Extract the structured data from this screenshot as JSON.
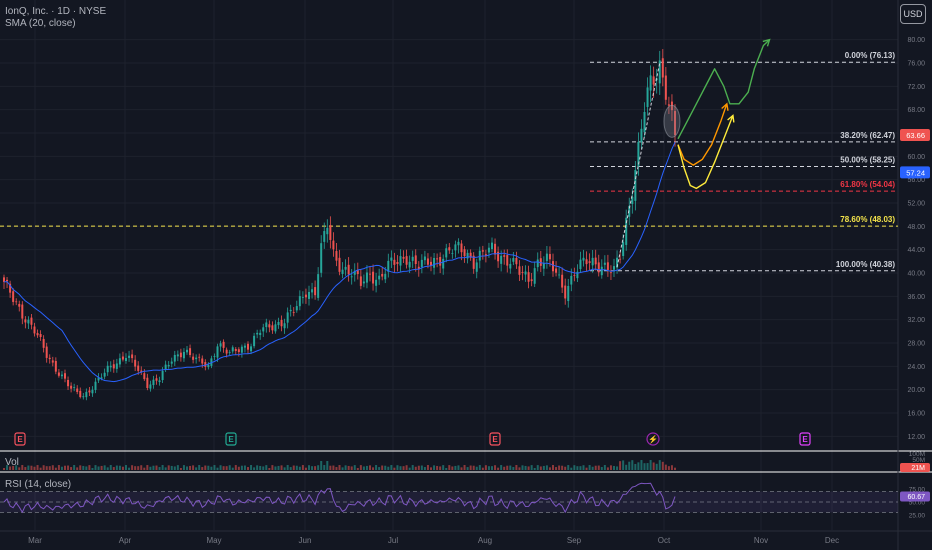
{
  "header": {
    "symbol": "IonQ, Inc. · 1D · NYSE",
    "sma_label": "SMA (20, close)",
    "volume_label": "Vol",
    "rsi_label": "RSI (14, close)",
    "currency": "USD"
  },
  "price_scale": {
    "ticks": [
      "80.00",
      "76.00",
      "72.00",
      "68.00",
      "64.00",
      "60.00",
      "56.00",
      "52.00",
      "48.00",
      "44.00",
      "40.00",
      "36.00",
      "32.00",
      "28.00",
      "24.00",
      "20.00",
      "16.00",
      "12.00"
    ],
    "current_price": "63.66",
    "sma_value": "57.24",
    "colors": {
      "price_badge": "#ef5350",
      "sma_badge": "#2962ff"
    }
  },
  "fib_levels": [
    {
      "label": "0.00% (76.13)",
      "price": 76.13,
      "color": "#d1d4dc"
    },
    {
      "label": "38.20% (62.47)",
      "price": 62.47,
      "color": "#d1d4dc"
    },
    {
      "label": "50.00% (58.25)",
      "price": 58.25,
      "color": "#d1d4dc"
    },
    {
      "label": "61.80% (54.04)",
      "price": 54.04,
      "color": "#f23645"
    },
    {
      "label": "78.60% (48.03)",
      "price": 48.03,
      "color": "#f5e54b"
    },
    {
      "label": "100.00% (40.38)",
      "price": 40.38,
      "color": "#d1d4dc"
    }
  ],
  "x_axis": {
    "months": [
      "Mar",
      "Apr",
      "May",
      "Jun",
      "Jul",
      "Aug",
      "Sep",
      "Oct",
      "Nov",
      "Dec"
    ]
  },
  "events": [
    {
      "type": "earnings",
      "label": "E",
      "color": "#f7525f"
    },
    {
      "type": "earnings",
      "label": "E",
      "color": "#22ab94"
    },
    {
      "type": "earnings",
      "label": "E",
      "color": "#f7525f"
    },
    {
      "type": "event",
      "label": "⚡",
      "color": "#9c27b0"
    },
    {
      "type": "earnings",
      "label": "E",
      "color": "#e040fb"
    }
  ],
  "volume": {
    "ticks": [
      "100M",
      "50M"
    ],
    "value": "21M",
    "badge_color": "#ef5350"
  },
  "rsi": {
    "ticks": [
      "75.00",
      "50.00",
      "25.00"
    ],
    "value": "60.67",
    "badge_color": "#7e57c2"
  },
  "chart_data": {
    "type": "candlestick",
    "title": "IonQ, Inc. · 1D · NYSE",
    "ylim": [
      10,
      82
    ],
    "colors": {
      "up": "#26a69a",
      "down": "#ef5350",
      "sma": "#2962ff",
      "rsi": "#7e57c2"
    },
    "price_path": [
      [
        0,
        38
      ],
      [
        5,
        34
      ],
      [
        10,
        30
      ],
      [
        14,
        26
      ],
      [
        18,
        23
      ],
      [
        22,
        20
      ],
      [
        26,
        19
      ],
      [
        30,
        21
      ],
      [
        35,
        24
      ],
      [
        40,
        26
      ],
      [
        43,
        24
      ],
      [
        47,
        21
      ],
      [
        51,
        22
      ],
      [
        55,
        25
      ],
      [
        59,
        27
      ],
      [
        63,
        25
      ],
      [
        67,
        24
      ],
      [
        70,
        28
      ],
      [
        74,
        26
      ],
      [
        77,
        27
      ],
      [
        81,
        28
      ],
      [
        84,
        30
      ],
      [
        88,
        31
      ],
      [
        92,
        32
      ],
      [
        96,
        34
      ],
      [
        99,
        37
      ],
      [
        102,
        37
      ],
      [
        104,
        44
      ],
      [
        106,
        48
      ],
      [
        108,
        43
      ],
      [
        111,
        41
      ],
      [
        114,
        40
      ],
      [
        117,
        38
      ],
      [
        120,
        40
      ],
      [
        123,
        39
      ],
      [
        126,
        41
      ],
      [
        129,
        42
      ],
      [
        132,
        43
      ],
      [
        136,
        41
      ],
      [
        140,
        42
      ],
      [
        144,
        43
      ],
      [
        148,
        44
      ],
      [
        151,
        44
      ],
      [
        154,
        42
      ],
      [
        157,
        43
      ],
      [
        160,
        44
      ],
      [
        163,
        43
      ],
      [
        166,
        42
      ],
      [
        169,
        40
      ],
      [
        172,
        39
      ],
      [
        175,
        42
      ],
      [
        178,
        42
      ],
      [
        181,
        40
      ],
      [
        184,
        37
      ],
      [
        187,
        40
      ],
      [
        189,
        41
      ],
      [
        191,
        42
      ],
      [
        194,
        42
      ],
      [
        197,
        41
      ],
      [
        200,
        40
      ],
      [
        202,
        43
      ],
      [
        204,
        49
      ],
      [
        206,
        55
      ],
      [
        208,
        61
      ],
      [
        210,
        68
      ],
      [
        212,
        72
      ],
      [
        214,
        75
      ],
      [
        215,
        76
      ],
      [
        217,
        72
      ],
      [
        219,
        66
      ],
      [
        220,
        63.66
      ]
    ],
    "forecast_paths": [
      {
        "color": "#4caf50",
        "points": [
          [
            221,
            63
          ],
          [
            226,
            68
          ],
          [
            231,
            73
          ],
          [
            233,
            75
          ],
          [
            236,
            72
          ],
          [
            238,
            69
          ],
          [
            241,
            69
          ],
          [
            244,
            71
          ],
          [
            246,
            75
          ],
          [
            249,
            79
          ],
          [
            251,
            80
          ]
        ]
      },
      {
        "color": "#ff9800",
        "points": [
          [
            221,
            62
          ],
          [
            223,
            59.5
          ],
          [
            226,
            58.5
          ],
          [
            229,
            59.5
          ],
          [
            232,
            62
          ],
          [
            235,
            66
          ],
          [
            237,
            69
          ]
        ]
      },
      {
        "color": "#ffeb3b",
        "points": [
          [
            221,
            62
          ],
          [
            223,
            58
          ],
          [
            225,
            55
          ],
          [
            227,
            54.5
          ],
          [
            230,
            55.5
          ],
          [
            233,
            59
          ],
          [
            236,
            63
          ],
          [
            239,
            67
          ]
        ]
      }
    ],
    "notes": "y values in USD; x is trading-day index; candles generated from price_path."
  }
}
